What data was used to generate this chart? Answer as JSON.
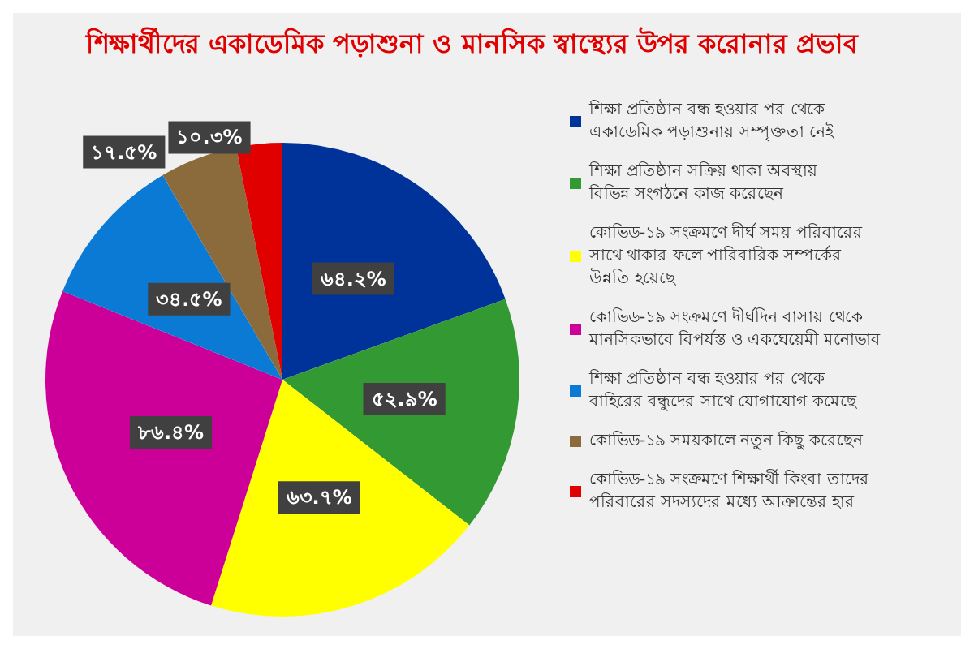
{
  "chart_data": {
    "type": "pie",
    "title": "শিক্ষার্থীদের একাডেমিক পড়াশুনা ও মানসিক স্বাস্থ্যের উপর করোনার প্রভাব",
    "categories": [
      "শিক্ষা প্রতিষ্ঠান বন্ধ হওয়ার পর থেকে একাডেমিক পড়াশুনায় সম্পৃক্ততা নেই",
      "শিক্ষা প্রতিষ্ঠান সক্রিয় থাকা অবস্থায় বিভিন্ন সংগঠনে কাজ করেছেন",
      "কোভিড-১৯ সংক্রমণে দীর্ঘ সময় পরিবারের সাথে থাকার ফলে পারিবারিক সম্পর্কের উন্নতি হয়েছে",
      "কোভিড-১৯ সংক্রমণে দীর্ঘদিন বাসায় থেকে মানসিকভাবে বিপর্যস্ত ও একঘেয়েমী মনোভাব",
      "শিক্ষা প্রতিষ্ঠান বন্ধ হওয়ার পর থেকে বাহিরের বন্ধুদের সাথে যোগাযোগ কমেছে",
      "কোভিড-১৯ সময়কালে নতুন কিছু করেছেন",
      "কোভিড-১৯ সংক্রমণে শিক্ষার্থী কিংবা তাদের পরিবারের সদস্যদের মধ্যে আক্রান্তের হার"
    ],
    "values": [
      64.2,
      52.9,
      63.7,
      86.4,
      34.5,
      17.5,
      10.3
    ],
    "value_labels": [
      "৬৪.২%",
      "৫২.৯%",
      "৬৩.৭%",
      "৮৬.৪%",
      "৩৪.৫%",
      "১৭.৫%",
      "১০.৩%"
    ],
    "colors": [
      "#003399",
      "#339933",
      "#ffff00",
      "#cc0099",
      "#0a7ad4",
      "#8b6b3c",
      "#e00000"
    ],
    "legend": "right"
  }
}
